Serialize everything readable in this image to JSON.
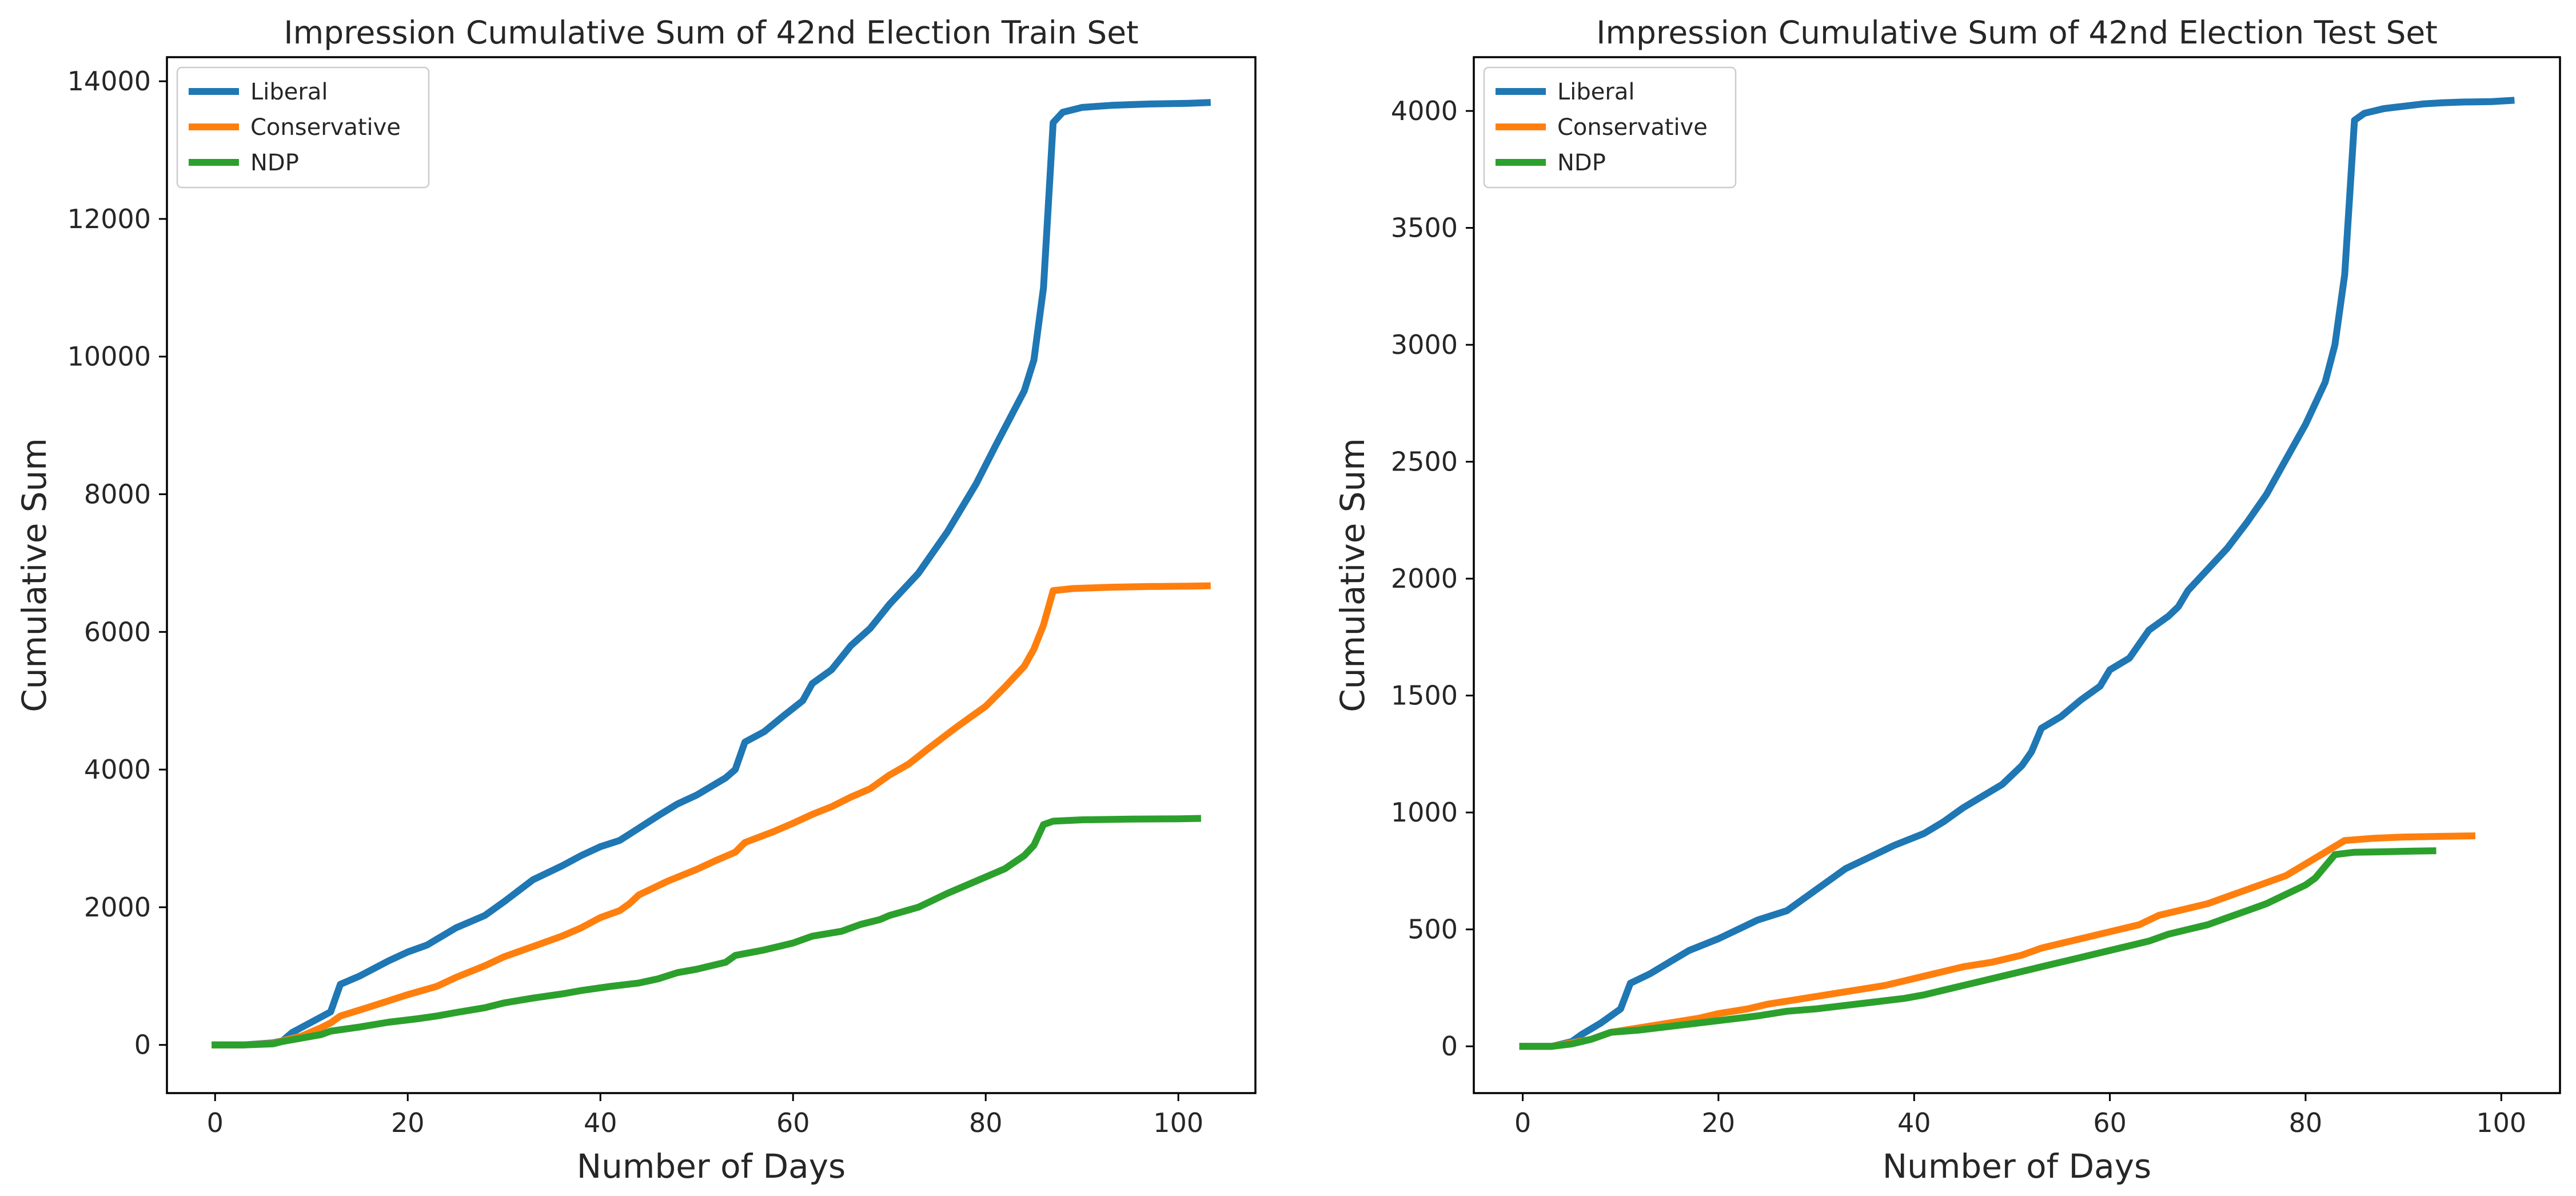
{
  "colors": {
    "Liberal": "#1f77b4",
    "Conservative": "#ff7f0e",
    "NDP": "#2ca02c"
  },
  "chart_data": [
    {
      "type": "line",
      "title": "Impression Cumulative Sum of 42nd Election Train Set",
      "xlabel": "Number of Days",
      "ylabel": "Cumulative Sum",
      "xlim": [
        -5,
        108
      ],
      "ylim": [
        -700,
        14350
      ],
      "xticks": [
        0,
        20,
        40,
        60,
        80,
        100
      ],
      "yticks": [
        0,
        2000,
        4000,
        6000,
        8000,
        10000,
        12000,
        14000
      ],
      "legend": "top-left",
      "grid": false,
      "series": [
        {
          "name": "Liberal",
          "points": [
            [
              0,
              0
            ],
            [
              3,
              0
            ],
            [
              6,
              30
            ],
            [
              7,
              60
            ],
            [
              8,
              180
            ],
            [
              10,
              330
            ],
            [
              12,
              480
            ],
            [
              13,
              880
            ],
            [
              15,
              1000
            ],
            [
              18,
              1220
            ],
            [
              20,
              1350
            ],
            [
              22,
              1450
            ],
            [
              25,
              1700
            ],
            [
              28,
              1880
            ],
            [
              30,
              2080
            ],
            [
              33,
              2400
            ],
            [
              36,
              2600
            ],
            [
              38,
              2750
            ],
            [
              40,
              2880
            ],
            [
              42,
              2970
            ],
            [
              44,
              3150
            ],
            [
              46,
              3330
            ],
            [
              48,
              3500
            ],
            [
              50,
              3630
            ],
            [
              53,
              3880
            ],
            [
              54,
              4000
            ],
            [
              55,
              4400
            ],
            [
              57,
              4550
            ],
            [
              59,
              4780
            ],
            [
              61,
              5000
            ],
            [
              62,
              5250
            ],
            [
              64,
              5450
            ],
            [
              66,
              5800
            ],
            [
              68,
              6050
            ],
            [
              70,
              6400
            ],
            [
              73,
              6850
            ],
            [
              76,
              7450
            ],
            [
              79,
              8150
            ],
            [
              81,
              8700
            ],
            [
              84,
              9500
            ],
            [
              85,
              9950
            ],
            [
              86,
              11000
            ],
            [
              87,
              13400
            ],
            [
              88,
              13550
            ],
            [
              90,
              13620
            ],
            [
              93,
              13650
            ],
            [
              97,
              13670
            ],
            [
              101,
              13680
            ],
            [
              103,
              13690
            ]
          ]
        },
        {
          "name": "Conservative",
          "points": [
            [
              0,
              0
            ],
            [
              3,
              0
            ],
            [
              6,
              20
            ],
            [
              7,
              60
            ],
            [
              9,
              130
            ],
            [
              11,
              250
            ],
            [
              12,
              320
            ],
            [
              13,
              420
            ],
            [
              16,
              550
            ],
            [
              20,
              730
            ],
            [
              23,
              850
            ],
            [
              25,
              980
            ],
            [
              28,
              1150
            ],
            [
              30,
              1280
            ],
            [
              33,
              1430
            ],
            [
              36,
              1580
            ],
            [
              38,
              1700
            ],
            [
              40,
              1850
            ],
            [
              42,
              1950
            ],
            [
              43,
              2050
            ],
            [
              44,
              2180
            ],
            [
              47,
              2380
            ],
            [
              50,
              2550
            ],
            [
              52,
              2680
            ],
            [
              54,
              2800
            ],
            [
              55,
              2940
            ],
            [
              58,
              3100
            ],
            [
              60,
              3220
            ],
            [
              62,
              3350
            ],
            [
              64,
              3460
            ],
            [
              66,
              3600
            ],
            [
              68,
              3720
            ],
            [
              70,
              3920
            ],
            [
              72,
              4080
            ],
            [
              74,
              4300
            ],
            [
              77,
              4620
            ],
            [
              80,
              4920
            ],
            [
              82,
              5200
            ],
            [
              84,
              5500
            ],
            [
              85,
              5750
            ],
            [
              86,
              6100
            ],
            [
              87,
              6600
            ],
            [
              89,
              6630
            ],
            [
              93,
              6650
            ],
            [
              97,
              6660
            ],
            [
              101,
              6665
            ],
            [
              103,
              6670
            ]
          ]
        },
        {
          "name": "NDP",
          "points": [
            [
              0,
              0
            ],
            [
              3,
              0
            ],
            [
              6,
              15
            ],
            [
              7,
              50
            ],
            [
              9,
              100
            ],
            [
              11,
              150
            ],
            [
              12,
              200
            ],
            [
              15,
              260
            ],
            [
              18,
              330
            ],
            [
              21,
              380
            ],
            [
              23,
              420
            ],
            [
              25,
              470
            ],
            [
              28,
              540
            ],
            [
              30,
              610
            ],
            [
              33,
              680
            ],
            [
              36,
              740
            ],
            [
              38,
              790
            ],
            [
              41,
              850
            ],
            [
              44,
              900
            ],
            [
              46,
              960
            ],
            [
              48,
              1050
            ],
            [
              50,
              1100
            ],
            [
              53,
              1200
            ],
            [
              54,
              1300
            ],
            [
              57,
              1380
            ],
            [
              60,
              1480
            ],
            [
              62,
              1580
            ],
            [
              65,
              1650
            ],
            [
              67,
              1750
            ],
            [
              69,
              1820
            ],
            [
              70,
              1880
            ],
            [
              73,
              2000
            ],
            [
              76,
              2200
            ],
            [
              79,
              2380
            ],
            [
              82,
              2560
            ],
            [
              84,
              2750
            ],
            [
              85,
              2900
            ],
            [
              86,
              3200
            ],
            [
              87,
              3250
            ],
            [
              90,
              3270
            ],
            [
              95,
              3280
            ],
            [
              100,
              3285
            ],
            [
              102,
              3290
            ]
          ]
        }
      ]
    },
    {
      "type": "line",
      "title": "Impression Cumulative Sum of 42nd Election Test Set",
      "xlabel": "Number of Days",
      "ylabel": "Cumulative Sum",
      "xlim": [
        -5,
        106
      ],
      "ylim": [
        -200,
        4230
      ],
      "xticks": [
        0,
        20,
        40,
        60,
        80,
        100
      ],
      "yticks": [
        0,
        500,
        1000,
        1500,
        2000,
        2500,
        3000,
        3500,
        4000
      ],
      "legend": "top-left",
      "grid": false,
      "series": [
        {
          "name": "Liberal",
          "points": [
            [
              0,
              0
            ],
            [
              3,
              0
            ],
            [
              5,
              20
            ],
            [
              6,
              50
            ],
            [
              8,
              100
            ],
            [
              10,
              160
            ],
            [
              11,
              270
            ],
            [
              13,
              310
            ],
            [
              15,
              360
            ],
            [
              17,
              410
            ],
            [
              20,
              460
            ],
            [
              22,
              500
            ],
            [
              24,
              540
            ],
            [
              27,
              580
            ],
            [
              29,
              640
            ],
            [
              31,
              700
            ],
            [
              33,
              760
            ],
            [
              35,
              800
            ],
            [
              38,
              860
            ],
            [
              41,
              910
            ],
            [
              43,
              960
            ],
            [
              45,
              1020
            ],
            [
              47,
              1070
            ],
            [
              49,
              1120
            ],
            [
              51,
              1200
            ],
            [
              52,
              1260
            ],
            [
              53,
              1360
            ],
            [
              55,
              1410
            ],
            [
              57,
              1480
            ],
            [
              59,
              1540
            ],
            [
              60,
              1610
            ],
            [
              62,
              1660
            ],
            [
              64,
              1780
            ],
            [
              66,
              1840
            ],
            [
              67,
              1880
            ],
            [
              68,
              1950
            ],
            [
              70,
              2040
            ],
            [
              72,
              2130
            ],
            [
              74,
              2240
            ],
            [
              76,
              2360
            ],
            [
              78,
              2510
            ],
            [
              80,
              2660
            ],
            [
              82,
              2840
            ],
            [
              83,
              3000
            ],
            [
              84,
              3300
            ],
            [
              85,
              3960
            ],
            [
              86,
              3990
            ],
            [
              88,
              4010
            ],
            [
              90,
              4020
            ],
            [
              92,
              4030
            ],
            [
              94,
              4035
            ],
            [
              96,
              4038
            ],
            [
              99,
              4040
            ],
            [
              101,
              4045
            ]
          ]
        },
        {
          "name": "Conservative",
          "points": [
            [
              0,
              0
            ],
            [
              3,
              0
            ],
            [
              5,
              15
            ],
            [
              7,
              30
            ],
            [
              9,
              60
            ],
            [
              12,
              80
            ],
            [
              15,
              100
            ],
            [
              18,
              120
            ],
            [
              20,
              140
            ],
            [
              23,
              160
            ],
            [
              25,
              180
            ],
            [
              28,
              200
            ],
            [
              31,
              220
            ],
            [
              34,
              240
            ],
            [
              37,
              260
            ],
            [
              39,
              280
            ],
            [
              41,
              300
            ],
            [
              43,
              320
            ],
            [
              45,
              340
            ],
            [
              48,
              360
            ],
            [
              51,
              390
            ],
            [
              53,
              420
            ],
            [
              55,
              440
            ],
            [
              58,
              470
            ],
            [
              61,
              500
            ],
            [
              63,
              520
            ],
            [
              65,
              560
            ],
            [
              67,
              580
            ],
            [
              70,
              610
            ],
            [
              72,
              640
            ],
            [
              74,
              670
            ],
            [
              76,
              700
            ],
            [
              78,
              730
            ],
            [
              80,
              780
            ],
            [
              82,
              830
            ],
            [
              84,
              880
            ],
            [
              87,
              890
            ],
            [
              90,
              895
            ],
            [
              94,
              898
            ],
            [
              97,
              900
            ]
          ]
        },
        {
          "name": "NDP",
          "points": [
            [
              0,
              0
            ],
            [
              3,
              0
            ],
            [
              5,
              10
            ],
            [
              7,
              30
            ],
            [
              9,
              60
            ],
            [
              12,
              70
            ],
            [
              15,
              85
            ],
            [
              18,
              100
            ],
            [
              21,
              115
            ],
            [
              24,
              130
            ],
            [
              27,
              150
            ],
            [
              30,
              160
            ],
            [
              33,
              175
            ],
            [
              36,
              190
            ],
            [
              39,
              205
            ],
            [
              41,
              220
            ],
            [
              43,
              240
            ],
            [
              45,
              260
            ],
            [
              47,
              280
            ],
            [
              49,
              300
            ],
            [
              51,
              320
            ],
            [
              53,
              340
            ],
            [
              55,
              360
            ],
            [
              57,
              380
            ],
            [
              59,
              400
            ],
            [
              62,
              430
            ],
            [
              64,
              450
            ],
            [
              66,
              480
            ],
            [
              68,
              500
            ],
            [
              70,
              520
            ],
            [
              72,
              550
            ],
            [
              74,
              580
            ],
            [
              76,
              610
            ],
            [
              78,
              650
            ],
            [
              80,
              690
            ],
            [
              81,
              720
            ],
            [
              83,
              820
            ],
            [
              85,
              830
            ],
            [
              88,
              832
            ],
            [
              91,
              835
            ],
            [
              93,
              836
            ]
          ]
        }
      ]
    }
  ]
}
